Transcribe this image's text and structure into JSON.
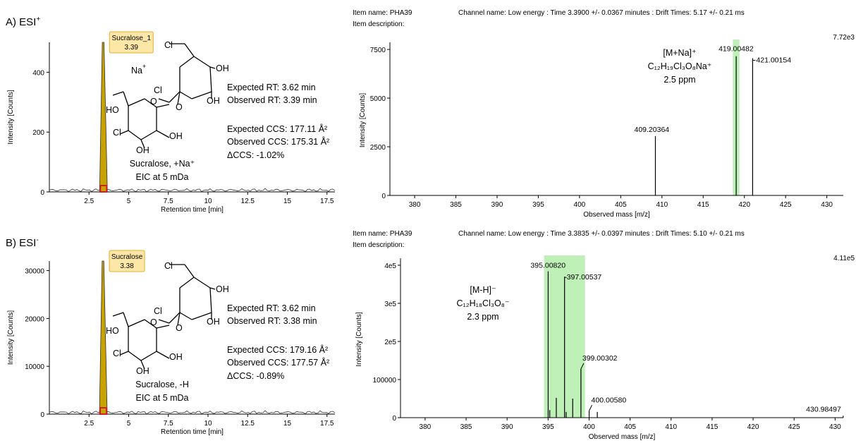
{
  "panels": [
    {
      "label": "A) ESI",
      "label_sup": "+",
      "chromatogram": {
        "type": "line",
        "xlabel": "Retention time [min]",
        "ylabel": "Intensity [Counts]",
        "xlim": [
          0,
          18
        ],
        "ylim": [
          0,
          500
        ],
        "xticks": [
          "2.5",
          "5",
          "7.5",
          "10",
          "12.5",
          "15",
          "17.5"
        ],
        "yticks": [
          "0",
          "200",
          "400"
        ],
        "peak": {
          "x": 3.39,
          "y": 500,
          "callout": [
            "Sucralose_1",
            "3.39"
          ]
        },
        "ion": "Na",
        "ion_sup": "+",
        "compound": [
          "Sucralose, +Na⁺",
          "EIC at 5 mDa"
        ],
        "metrics": [
          "Expected RT: 3.62 min",
          "Observed RT: 3.39 min",
          "Expected CCS: 177.11 Å²",
          "Observed CCS: 175.31 Å²",
          "ΔCCS: -1.02%"
        ]
      },
      "spectrum": {
        "type": "bar",
        "header_left": [
          "Item name: PHA39",
          "Item description:"
        ],
        "header_right": "Channel name: Low energy : Time 3.3900 +/- 0.0367 minutes : Drift Times: 5.17 +/- 0.21 ms",
        "max_label": "7.72e3",
        "xlabel": "Observed mass [m/z]",
        "ylabel": "Intensity [Counts]",
        "xlim": [
          377,
          432
        ],
        "ylim": [
          0,
          7720
        ],
        "xticks": [
          "380",
          "385",
          "390",
          "395",
          "400",
          "405",
          "410",
          "415",
          "420",
          "425",
          "430"
        ],
        "yticks": [
          "0",
          "2500",
          "5000",
          "7500"
        ],
        "highlight": [
          418.6,
          419.4
        ],
        "peaks": [
          {
            "mz": 409.20364,
            "y": 3050,
            "label": "409.20364"
          },
          {
            "mz": 419.00482,
            "y": 7150,
            "label": "419.00482"
          },
          {
            "mz": 421.00154,
            "y": 7050,
            "label": "421.00154"
          }
        ],
        "annotation": [
          "[M+Na]⁺",
          "C₁₂H₁₉Cl₃O₈Na⁺",
          "2.5 ppm"
        ]
      }
    },
    {
      "label": "B) ESI",
      "label_sup": "-",
      "chromatogram": {
        "type": "line",
        "xlabel": "Retention time [min]",
        "ylabel": "Intensity [Counts]",
        "xlim": [
          0,
          18
        ],
        "ylim": [
          0,
          32000
        ],
        "xticks": [
          "2.5",
          "5",
          "7.5",
          "10",
          "12.5",
          "15",
          "17.5"
        ],
        "yticks": [
          "0",
          "10000",
          "20000",
          "30000"
        ],
        "peak": {
          "x": 3.38,
          "y": 32000,
          "callout": [
            "Sucralose",
            "3.38"
          ]
        },
        "ion": "",
        "ion_sup": "",
        "compound": [
          "Sucralose, -H",
          "EIC at 5 mDa"
        ],
        "metrics": [
          "Expected RT: 3.62 min",
          "Observed RT: 3.38 min",
          "Expected CCS: 179.16 Å²",
          "Observed CCS: 177.57 Å²",
          "ΔCCS: -0.89%"
        ]
      },
      "spectrum": {
        "type": "bar",
        "header_left": [
          "Item name: PHA39",
          "Item description:"
        ],
        "header_right": "Channel name: Low energy : Time 3.3835 +/- 0.0397 minutes : Drift Times: 5.10 +/- 0.21 ms",
        "max_label": "4.11e5",
        "xlabel": "Observed mass [m/z]",
        "ylabel": "Intensity [Counts]",
        "xlim": [
          377,
          431
        ],
        "ylim": [
          0,
          411000
        ],
        "xticks": [
          "380",
          "385",
          "390",
          "395",
          "400",
          "405",
          "410",
          "415",
          "420",
          "425",
          "430"
        ],
        "yticks": [
          "0",
          "100000",
          "2e5",
          "3e5",
          "4e5"
        ],
        "highlight": [
          394.5,
          399.5
        ],
        "peaks": [
          {
            "mz": 395.0082,
            "y": 384000,
            "label": "395.00820"
          },
          {
            "mz": 395.2,
            "y": 20000,
            "label": ""
          },
          {
            "mz": 396.0,
            "y": 52000,
            "label": ""
          },
          {
            "mz": 397.00537,
            "y": 370000,
            "label": "397.00537"
          },
          {
            "mz": 397.2,
            "y": 15000,
            "label": ""
          },
          {
            "mz": 398.0,
            "y": 50000,
            "label": ""
          },
          {
            "mz": 399.00302,
            "y": 128000,
            "label": "399.00302"
          },
          {
            "mz": 400.0058,
            "y": 18000,
            "label": "400.00580"
          },
          {
            "mz": 401.0,
            "y": 15000,
            "label": ""
          },
          {
            "mz": 430.98497,
            "y": 5000,
            "label": "430.98497"
          }
        ],
        "annotation": [
          "[M-H]⁻",
          "C₁₂H₁₈Cl₃O₈⁻",
          "2.3 ppm"
        ]
      }
    }
  ],
  "structure_labels": [
    "Cl",
    "OH",
    "Cl",
    "OH",
    "O",
    "HO",
    "O",
    "Cl",
    "OH",
    "OH"
  ],
  "colors": {
    "peak_fill": "#c8a200",
    "peak_box_fill": "#fde7a6",
    "peak_box_stroke": "#e0b030",
    "highlight": "#bff0b8",
    "marker": "#d02020"
  }
}
